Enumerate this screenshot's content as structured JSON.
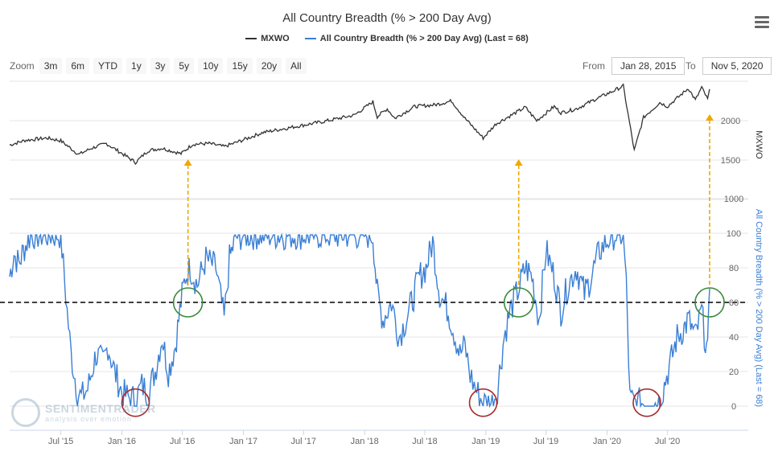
{
  "header": {
    "title": "All Country Breadth (% > 200 Day Avg)",
    "legend": [
      {
        "label": "MXWO",
        "color": "#333333"
      },
      {
        "label": "All Country Breadth (% > 200 Day Avg) (Last = 68)",
        "color": "#3a7fd5"
      }
    ]
  },
  "toolbar": {
    "zoom_label": "Zoom",
    "zoom_buttons": [
      "3m",
      "6m",
      "YTD",
      "1y",
      "3y",
      "5y",
      "10y",
      "15y",
      "20y",
      "All"
    ],
    "from_label": "From",
    "from_value": "Jan 28, 2015",
    "to_label": "To",
    "to_value": "Nov 5, 2020"
  },
  "watermark": {
    "name": "SENTIMENTRADER",
    "tagline": "analysis over emotion"
  },
  "colors": {
    "price": "#333333",
    "breadth": "#3a7fd5",
    "arrow": "#f0a800",
    "green_circle": "#3a8a3a",
    "red_circle": "#a52a2a",
    "threshold": "#000000",
    "grid": "#e6e6e6"
  },
  "chart_data": [
    {
      "type": "line",
      "panel": "top",
      "series": [
        {
          "name": "MXWO",
          "x": [
            "2015-01-28",
            "2015-03-15",
            "2015-05-20",
            "2015-07-01",
            "2015-08-24",
            "2015-10-01",
            "2015-11-15",
            "2016-01-10",
            "2016-02-11",
            "2016-03-20",
            "2016-05-01",
            "2016-06-27",
            "2016-08-01",
            "2016-09-20",
            "2016-11-04",
            "2016-12-15",
            "2017-03-01",
            "2017-06-01",
            "2017-09-01",
            "2017-12-01",
            "2018-01-26",
            "2018-02-08",
            "2018-03-10",
            "2018-04-02",
            "2018-06-01",
            "2018-08-01",
            "2018-09-20",
            "2018-10-30",
            "2018-12-24",
            "2019-02-01",
            "2019-04-30",
            "2019-06-03",
            "2019-07-26",
            "2019-08-15",
            "2019-10-01",
            "2019-12-01",
            "2020-01-17",
            "2020-02-19",
            "2020-03-23",
            "2020-04-20",
            "2020-06-08",
            "2020-07-01",
            "2020-09-02",
            "2020-09-23",
            "2020-10-12",
            "2020-10-30",
            "2020-11-05"
          ],
          "y": [
            1690,
            1750,
            1780,
            1745,
            1570,
            1650,
            1710,
            1560,
            1470,
            1620,
            1650,
            1580,
            1700,
            1710,
            1670,
            1730,
            1850,
            1920,
            1990,
            2070,
            2240,
            2050,
            2150,
            2030,
            2180,
            2200,
            2250,
            2030,
            1780,
            1960,
            2170,
            2000,
            2180,
            2100,
            2150,
            2280,
            2370,
            2440,
            1620,
            2040,
            2230,
            2180,
            2410,
            2260,
            2420,
            2270,
            2400
          ]
        }
      ],
      "y_label": "MXWO",
      "y_ticks": [
        1500,
        2000
      ],
      "ylim": [
        1200,
        2500
      ],
      "arrows_at": [
        "2016-07-18",
        "2019-04-10",
        "2020-11-05"
      ]
    },
    {
      "type": "line",
      "panel": "bottom",
      "series": [
        {
          "name": "All Country Breadth (% > 200 Day Avg) (Last = 68)",
          "x": [
            "2015-01-28",
            "2015-02-10",
            "2015-02-25",
            "2015-03-10",
            "2015-04-01",
            "2015-05-01",
            "2015-06-01",
            "2015-07-01",
            "2015-07-20",
            "2015-08-01",
            "2015-08-20",
            "2015-09-01",
            "2015-09-20",
            "2015-10-15",
            "2015-11-05",
            "2015-11-20",
            "2015-12-10",
            "2016-01-01",
            "2016-01-20",
            "2016-02-11",
            "2016-03-01",
            "2016-03-20",
            "2016-04-10",
            "2016-05-01",
            "2016-05-20",
            "2016-06-10",
            "2016-06-27",
            "2016-07-10",
            "2016-07-25",
            "2016-08-15",
            "2016-09-10",
            "2016-10-10",
            "2016-11-04",
            "2016-11-20",
            "2016-12-10",
            "2017-01-10",
            "2017-02-10",
            "2017-04-01",
            "2017-06-01",
            "2017-08-01",
            "2017-10-01",
            "2017-12-01",
            "2018-01-26",
            "2018-02-08",
            "2018-02-25",
            "2018-03-23",
            "2018-04-15",
            "2018-05-15",
            "2018-06-15",
            "2018-07-05",
            "2018-07-25",
            "2018-08-15",
            "2018-09-10",
            "2018-10-01",
            "2018-10-15",
            "2018-10-30",
            "2018-11-15",
            "2018-12-01",
            "2018-12-24",
            "2019-01-05",
            "2019-01-20",
            "2019-02-05",
            "2019-02-25",
            "2019-03-15",
            "2019-04-10",
            "2019-04-30",
            "2019-05-20",
            "2019-06-10",
            "2019-07-01",
            "2019-07-26",
            "2019-08-15",
            "2019-09-05",
            "2019-10-01",
            "2019-10-25",
            "2019-11-15",
            "2019-12-10",
            "2020-01-17",
            "2020-02-05",
            "2020-02-19",
            "2020-02-28",
            "2020-03-10",
            "2020-03-23",
            "2020-04-15",
            "2020-05-15",
            "2020-06-08",
            "2020-06-25",
            "2020-07-10",
            "2020-07-30",
            "2020-08-20",
            "2020-09-02",
            "2020-09-23",
            "2020-10-12",
            "2020-10-20",
            "2020-10-30",
            "2020-11-05"
          ],
          "y": [
            75,
            88,
            82,
            90,
            99,
            99,
            99,
            99,
            55,
            30,
            8,
            5,
            10,
            30,
            25,
            35,
            20,
            8,
            5,
            4,
            12,
            8,
            20,
            40,
            20,
            35,
            60,
            75,
            80,
            70,
            85,
            80,
            50,
            85,
            98,
            99,
            99,
            99,
            99,
            99,
            99,
            99,
            99,
            65,
            50,
            60,
            40,
            55,
            75,
            80,
            95,
            65,
            55,
            40,
            30,
            35,
            18,
            10,
            2,
            2,
            2,
            10,
            40,
            55,
            68,
            80,
            75,
            50,
            90,
            75,
            55,
            70,
            80,
            65,
            75,
            90,
            99,
            99,
            99,
            70,
            4,
            2,
            2,
            2,
            2,
            15,
            25,
            40,
            45,
            50,
            40,
            55,
            42,
            30,
            68
          ]
        }
      ],
      "y_label": "All Country Breadth (% > 200 Day Avg) (Last = 68)",
      "y_ticks": [
        0,
        20,
        40,
        60,
        80,
        100
      ],
      "ylim": [
        0,
        100
      ],
      "threshold": 60,
      "green_circles_at": [
        "2016-07-18",
        "2019-04-10",
        "2020-11-05"
      ],
      "red_circles_at": [
        "2016-02-11",
        "2018-12-24",
        "2020-04-30"
      ]
    }
  ],
  "x_axis": {
    "labels": [
      "Jul '15",
      "Jan '16",
      "Jul '16",
      "Jan '17",
      "Jul '17",
      "Jan '18",
      "Jul '18",
      "Jan '19",
      "Jul '19",
      "Jan '20",
      "Jul '20"
    ],
    "dates": [
      "2015-07-01",
      "2016-01-01",
      "2016-07-01",
      "2017-01-01",
      "2017-07-01",
      "2018-01-01",
      "2018-07-01",
      "2019-01-01",
      "2019-07-01",
      "2020-01-01",
      "2020-07-01"
    ]
  }
}
